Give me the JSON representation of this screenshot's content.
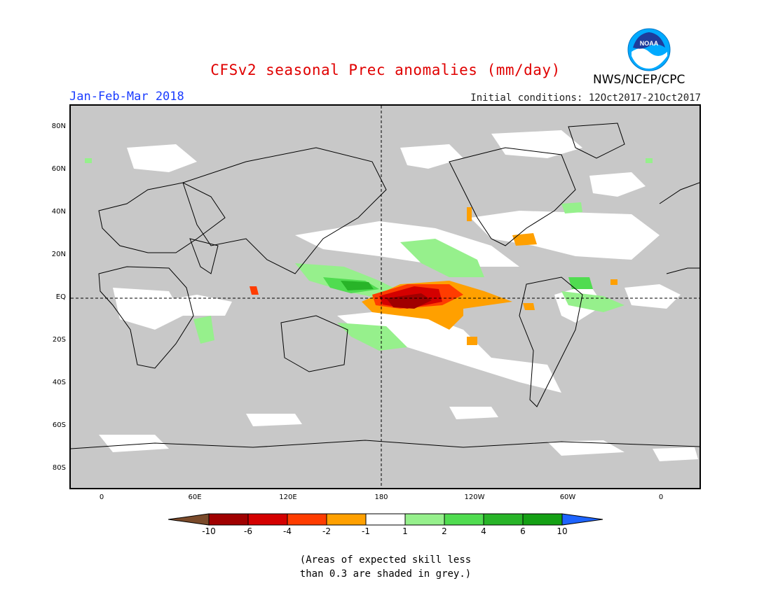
{
  "title": "CFSv2 seasonal Prec anomalies (mm/day)",
  "agency": "NWS/NCEP/CPC",
  "logo_text": "NOAA",
  "season": "Jan-Feb-Mar 2018",
  "initial_conditions": "Initial conditions: 12Oct2017-21Oct2017",
  "lat_labels": [
    "80N",
    "60N",
    "40N",
    "20N",
    "EQ",
    "20S",
    "40S",
    "60S",
    "80S"
  ],
  "lon_labels": [
    "0",
    "60E",
    "120E",
    "180",
    "120W",
    "60W",
    "0"
  ],
  "colorbar": {
    "labels": [
      "-10",
      "-6",
      "-4",
      "-2",
      "-1",
      "1",
      "2",
      "4",
      "6",
      "10"
    ],
    "colors": [
      "#7a4a2a",
      "#a00000",
      "#d40000",
      "#ff3c00",
      "#ffa000",
      "#ffffff",
      "#96f08c",
      "#50dc50",
      "#28b428",
      "#14a014",
      "#1e64ff"
    ]
  },
  "note_line1": "(Areas of expected skill less",
  "note_line2": "than 0.3 are shaded in grey.)",
  "colors": {
    "grey_low_skill": "#c8c8c8",
    "title_red": "#e00000",
    "season_blue": "#1a3cff"
  }
}
